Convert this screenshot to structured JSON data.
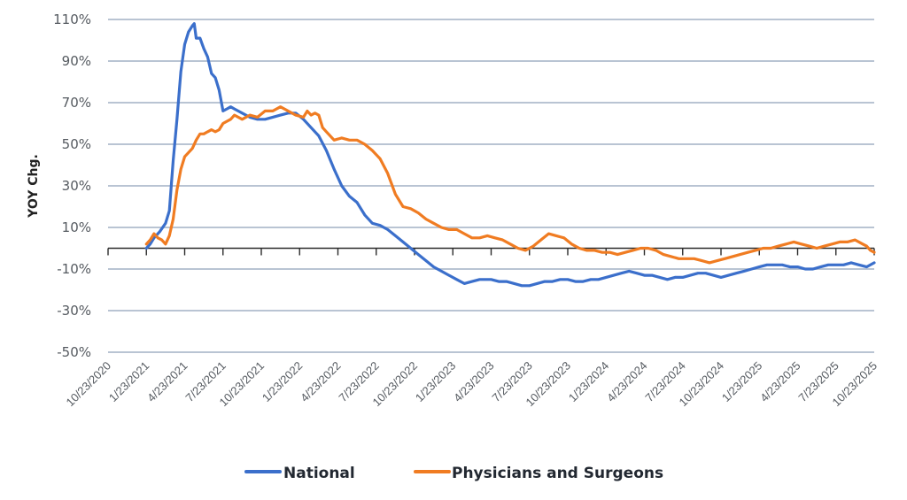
{
  "chart_data": {
    "type": "line",
    "title": "",
    "xlabel": "",
    "ylabel": "YOY Chg.",
    "ylim": [
      -50,
      110
    ],
    "yticks": [
      110,
      90,
      70,
      50,
      30,
      10,
      -10,
      -30,
      -50
    ],
    "ytick_labels": [
      "110%",
      "90%",
      "70%",
      "50%",
      "30%",
      "10%",
      "-10%",
      "-30%",
      "-50%"
    ],
    "x_tick_labels": [
      "10/23/2020",
      "1/23/2021",
      "4/23/2021",
      "7/23/2021",
      "10/23/2021",
      "1/23/2022",
      "4/23/2022",
      "7/23/2022",
      "10/23/2022",
      "1/23/2023",
      "4/23/2023",
      "7/23/2023",
      "10/23/2023",
      "1/23/2024",
      "4/23/2024",
      "7/23/2024",
      "10/23/2024",
      "1/23/2025",
      "4/23/2025",
      "7/23/2025",
      "10/23/2025"
    ],
    "x_unit": "quarters since 10/23/2020",
    "grid": true,
    "legend_position": "bottom",
    "series": [
      {
        "name": "National",
        "color": "#3b6fcb",
        "x": [
          1.0,
          1.1,
          1.2,
          1.35,
          1.5,
          1.6,
          1.7,
          1.8,
          1.9,
          2.0,
          2.1,
          2.2,
          2.25,
          2.3,
          2.4,
          2.5,
          2.6,
          2.7,
          2.8,
          2.9,
          3.0,
          3.1,
          3.2,
          3.3,
          3.5,
          3.7,
          3.9,
          4.1,
          4.3,
          4.5,
          4.7,
          4.9,
          5.1,
          5.3,
          5.5,
          5.7,
          5.9,
          6.1,
          6.3,
          6.5,
          6.7,
          6.9,
          7.1,
          7.3,
          7.5,
          7.7,
          7.9,
          8.1,
          8.3,
          8.5,
          8.7,
          8.9,
          9.1,
          9.3,
          9.5,
          9.7,
          9.8,
          9.9,
          10.0,
          10.2,
          10.4,
          10.6,
          10.8,
          11.0,
          11.2,
          11.4,
          11.6,
          11.8,
          12.0,
          12.2,
          12.4,
          12.6,
          12.8,
          13.0,
          13.2,
          13.4,
          13.6,
          13.8,
          14.0,
          14.2,
          14.4,
          14.6,
          14.8,
          15.0,
          15.2,
          15.4,
          15.6,
          15.8,
          16.0,
          16.2,
          16.4,
          16.6,
          16.8,
          17.0,
          17.2,
          17.4,
          17.6,
          17.8,
          18.0,
          18.2,
          18.4,
          18.6,
          18.8,
          19.0,
          19.2,
          19.4,
          19.6,
          19.8,
          20.0
        ],
        "values": [
          0,
          2,
          5,
          8,
          12,
          18,
          42,
          62,
          85,
          98,
          104,
          107,
          108,
          101,
          101,
          96,
          92,
          84,
          82,
          76,
          66,
          67,
          68,
          67,
          65,
          63,
          62,
          62,
          63,
          64,
          65,
          65,
          62,
          58,
          54,
          47,
          38,
          30,
          25,
          22,
          16,
          12,
          11,
          9,
          6,
          3,
          0,
          -3,
          -6,
          -9,
          -11,
          -13,
          -15,
          -17,
          -16,
          -15,
          -15,
          -15,
          -15,
          -16,
          -16,
          -17,
          -18,
          -18,
          -17,
          -16,
          -16,
          -15,
          -15,
          -16,
          -16,
          -15,
          -15,
          -14,
          -13,
          -12,
          -11,
          -12,
          -13,
          -13,
          -14,
          -15,
          -14,
          -14,
          -13,
          -12,
          -12,
          -13,
          -14,
          -13,
          -12,
          -11,
          -10,
          -9,
          -8,
          -8,
          -8,
          -9,
          -9,
          -10,
          -10,
          -9,
          -8,
          -8,
          -8,
          -7,
          -8,
          -9,
          -7
        ]
      },
      {
        "name": "Physicians and Surgeons",
        "color": "#f07c22",
        "x": [
          1.0,
          1.1,
          1.2,
          1.3,
          1.4,
          1.5,
          1.6,
          1.7,
          1.8,
          1.9,
          2.0,
          2.1,
          2.2,
          2.3,
          2.4,
          2.5,
          2.6,
          2.7,
          2.8,
          2.9,
          3.0,
          3.1,
          3.2,
          3.3,
          3.5,
          3.7,
          3.9,
          4.1,
          4.3,
          4.5,
          4.7,
          4.9,
          5.1,
          5.2,
          5.3,
          5.4,
          5.5,
          5.6,
          5.7,
          5.9,
          6.1,
          6.3,
          6.5,
          6.7,
          6.9,
          7.0,
          7.1,
          7.3,
          7.5,
          7.7,
          7.9,
          8.1,
          8.3,
          8.5,
          8.7,
          8.9,
          9.1,
          9.3,
          9.5,
          9.7,
          9.9,
          10.1,
          10.3,
          10.5,
          10.7,
          10.9,
          11.1,
          11.3,
          11.5,
          11.7,
          11.9,
          12.1,
          12.3,
          12.5,
          12.7,
          12.9,
          13.1,
          13.3,
          13.5,
          13.7,
          13.9,
          14.1,
          14.3,
          14.5,
          14.7,
          14.9,
          15.1,
          15.3,
          15.5,
          15.7,
          15.9,
          16.1,
          16.3,
          16.5,
          16.7,
          16.9,
          17.1,
          17.3,
          17.5,
          17.7,
          17.9,
          18.1,
          18.3,
          18.5,
          18.7,
          18.9,
          19.1,
          19.3,
          19.5,
          19.7,
          19.8,
          19.9,
          20.0
        ],
        "values": [
          2,
          4,
          7,
          5,
          4,
          2,
          6,
          14,
          28,
          38,
          44,
          46,
          48,
          52,
          55,
          55,
          56,
          57,
          56,
          57,
          60,
          61,
          62,
          64,
          62,
          64,
          63,
          66,
          66,
          68,
          66,
          64,
          63,
          66,
          64,
          65,
          64,
          58,
          56,
          52,
          53,
          52,
          52,
          50,
          47,
          45,
          43,
          36,
          26,
          20,
          19,
          17,
          14,
          12,
          10,
          9,
          9,
          7,
          5,
          5,
          6,
          5,
          4,
          2,
          0,
          -1,
          1,
          4,
          7,
          6,
          5,
          2,
          0,
          -1,
          -1,
          -2,
          -2,
          -3,
          -2,
          -1,
          0,
          0,
          -1,
          -3,
          -4,
          -5,
          -5,
          -5,
          -6,
          -7,
          -6,
          -5,
          -4,
          -3,
          -2,
          -1,
          0,
          0,
          1,
          2,
          3,
          2,
          1,
          0,
          1,
          2,
          3,
          3,
          4,
          2,
          1,
          -1,
          -2
        ]
      }
    ]
  },
  "legend": {
    "items": [
      {
        "label": "National",
        "color": "#3b6fcb"
      },
      {
        "label": "Physicians and Surgeons",
        "color": "#f07c22"
      }
    ]
  }
}
